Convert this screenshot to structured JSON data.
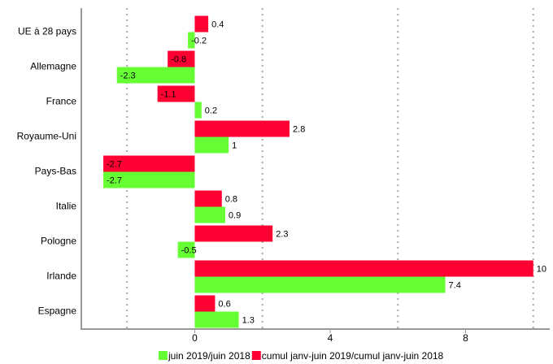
{
  "chart_data": {
    "type": "bar",
    "orientation": "horizontal",
    "categories": [
      "UE à 28 pays",
      "Allemagne",
      "France",
      "Royaume-Uni",
      "Pays-Bas",
      "Italie",
      "Pologne",
      "Irlande",
      "Espagne"
    ],
    "series": [
      {
        "name": "cumul janv-juin 2019/cumul janv-juin 2018",
        "color": "#ff0033",
        "values": [
          0.4,
          -0.8,
          -1.1,
          2.8,
          -2.7,
          0.8,
          2.3,
          10,
          0.6
        ]
      },
      {
        "name": "juin 2019/juin 2018",
        "color": "#66ff33",
        "values": [
          -0.2,
          -2.3,
          0.2,
          1,
          -2.7,
          0.9,
          -0.5,
          7.4,
          1.3
        ]
      }
    ],
    "legend_order": [
      1,
      0
    ],
    "xlim": [
      -3.35,
      10.15
    ],
    "xticks": [
      0,
      4,
      8
    ],
    "xgrid": [
      -2,
      2,
      6,
      10
    ],
    "grid": true,
    "legend": "bottom"
  }
}
